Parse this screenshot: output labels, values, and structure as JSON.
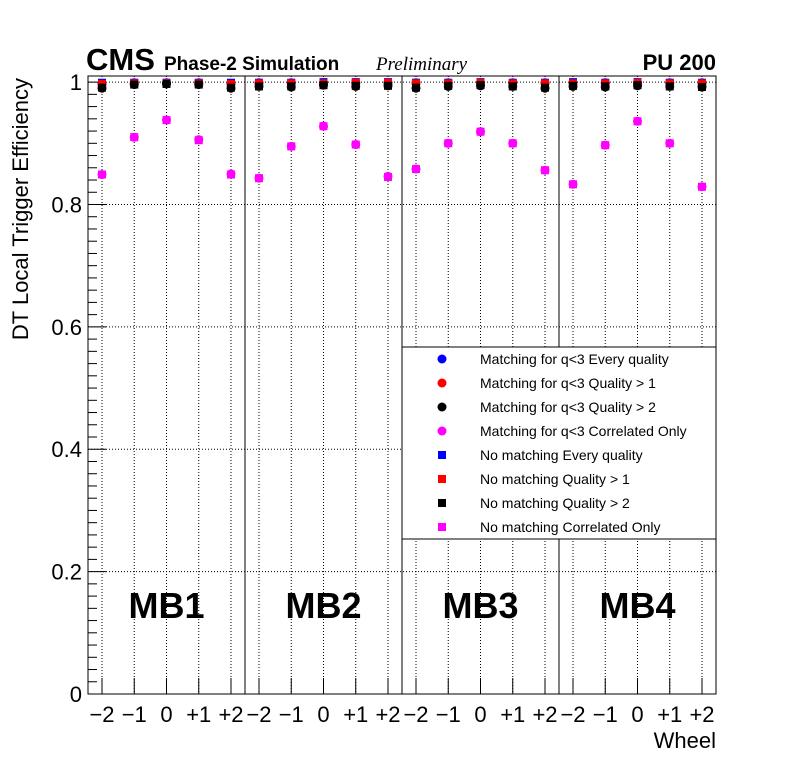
{
  "header": {
    "cms": "CMS",
    "sim": "Phase-2 Simulation",
    "prelim": "Preliminary",
    "pu": "PU 200"
  },
  "chart_data": {
    "type": "scatter",
    "xlabel": "Wheel",
    "ylabel": "DT Local Trigger Efficiency",
    "ylim": [
      0,
      1.01
    ],
    "yticks": [
      "0",
      "0.2",
      "0.4",
      "0.6",
      "0.8",
      "1"
    ],
    "stations": [
      "MB1",
      "MB2",
      "MB3",
      "MB4"
    ],
    "wheel_labels": [
      "−2",
      "−1",
      "0",
      "+1",
      "+2"
    ],
    "grid": true,
    "legend_position": "right-middle",
    "series": [
      {
        "name": "Matching for q<3 Every quality",
        "marker": "circle",
        "color": "#0000ff",
        "values": [
          0.998,
          0.999,
          0.999,
          0.999,
          0.998,
          0.999,
          0.999,
          0.999,
          0.999,
          0.999,
          0.999,
          0.999,
          0.999,
          0.999,
          0.999,
          0.999,
          0.999,
          0.999,
          0.999,
          0.999
        ]
      },
      {
        "name": "Matching for q<3 Quality > 1",
        "marker": "circle",
        "color": "#ff0000",
        "values": [
          0.996,
          0.998,
          0.998,
          0.998,
          0.996,
          0.998,
          0.998,
          0.998,
          0.998,
          0.998,
          0.998,
          0.998,
          0.998,
          0.998,
          0.998,
          0.998,
          0.998,
          0.998,
          0.998,
          0.998
        ]
      },
      {
        "name": "Matching for q<3 Quality > 2",
        "marker": "circle",
        "color": "#000000",
        "values": [
          0.99,
          0.996,
          0.997,
          0.996,
          0.99,
          0.993,
          0.992,
          0.995,
          0.993,
          0.994,
          0.99,
          0.993,
          0.994,
          0.993,
          0.99,
          0.993,
          0.992,
          0.994,
          0.993,
          0.992
        ]
      },
      {
        "name": "Matching for q<3 Correlated Only",
        "marker": "circle",
        "color": "#ff00ff",
        "values": [
          0.849,
          0.91,
          0.938,
          0.906,
          0.85,
          0.843,
          0.895,
          0.928,
          0.898,
          0.846,
          0.858,
          0.9,
          0.919,
          0.9,
          0.856,
          0.833,
          0.897,
          0.936,
          0.9,
          0.829
        ]
      },
      {
        "name": "No matching Every quality",
        "marker": "square",
        "color": "#0000ff",
        "values": [
          0.999,
          0.999,
          0.999,
          0.999,
          0.999,
          0.999,
          0.999,
          1.0,
          1.0,
          1.0,
          0.999,
          0.999,
          1.0,
          0.999,
          0.999,
          1.0,
          0.999,
          1.0,
          0.999,
          0.999
        ]
      },
      {
        "name": "No matching Quality > 1",
        "marker": "square",
        "color": "#ff0000",
        "values": [
          0.997,
          0.998,
          0.998,
          0.998,
          0.997,
          0.998,
          0.998,
          0.998,
          0.999,
          0.999,
          0.998,
          0.998,
          0.999,
          0.998,
          0.998,
          0.998,
          0.998,
          0.999,
          0.998,
          0.998
        ]
      },
      {
        "name": "No matching Quality > 2",
        "marker": "square",
        "color": "#000000",
        "values": [
          0.991,
          0.996,
          0.997,
          0.996,
          0.991,
          0.993,
          0.993,
          0.995,
          0.994,
          0.994,
          0.991,
          0.994,
          0.995,
          0.993,
          0.991,
          0.994,
          0.993,
          0.995,
          0.993,
          0.992
        ]
      },
      {
        "name": "No matching Correlated Only",
        "marker": "square",
        "color": "#ff00ff",
        "values": [
          0.849,
          0.91,
          0.938,
          0.905,
          0.849,
          0.843,
          0.895,
          0.928,
          0.898,
          0.845,
          0.858,
          0.9,
          0.919,
          0.9,
          0.856,
          0.833,
          0.897,
          0.936,
          0.9,
          0.829
        ]
      }
    ]
  }
}
